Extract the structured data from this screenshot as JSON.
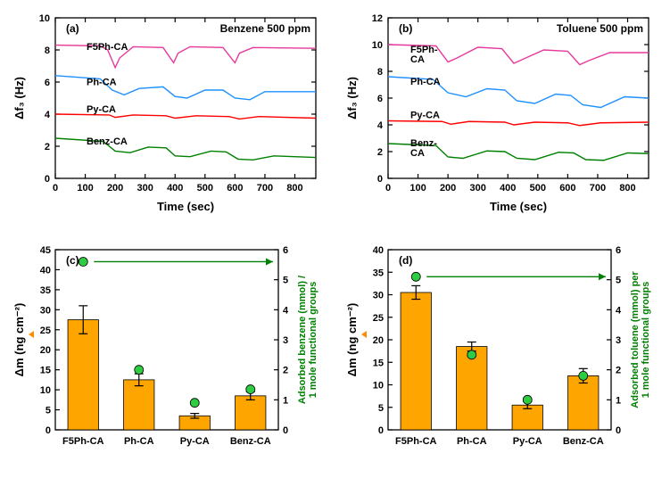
{
  "colors": {
    "f5ph": "#e6399b",
    "ph": "#1e90ff",
    "py": "#ff0000",
    "benz": "#008000",
    "bar": "#ffa500",
    "dot": "#2ecc40",
    "y2": "#008000",
    "y1_arrow": "#ff8c00"
  },
  "panel_a": {
    "label": "(a)",
    "header": "Benzene 500 ppm",
    "x_title": "Time (sec)",
    "y_title": "Δf₃ (Hz)",
    "xlim": [
      0,
      870
    ],
    "xticks": [
      0,
      100,
      200,
      300,
      400,
      500,
      600,
      700,
      800
    ],
    "ylim": [
      0,
      10
    ],
    "yticks": [
      0,
      2,
      4,
      6,
      8,
      10
    ],
    "series": [
      {
        "name": "F5Ph-CA",
        "color": "f5ph",
        "label_x": 35,
        "label_y": 8.0,
        "pts": [
          [
            0,
            8.3
          ],
          [
            150,
            8.25
          ],
          [
            175,
            8.0
          ],
          [
            200,
            6.9
          ],
          [
            215,
            7.5
          ],
          [
            260,
            8.2
          ],
          [
            360,
            8.15
          ],
          [
            395,
            7.2
          ],
          [
            410,
            7.8
          ],
          [
            450,
            8.2
          ],
          [
            560,
            8.15
          ],
          [
            600,
            7.2
          ],
          [
            615,
            7.8
          ],
          [
            660,
            8.15
          ],
          [
            870,
            8.1
          ]
        ]
      },
      {
        "name": "Ph-CA",
        "color": "ph",
        "label_x": 35,
        "label_y": 5.8,
        "pts": [
          [
            0,
            6.4
          ],
          [
            150,
            6.2
          ],
          [
            190,
            5.5
          ],
          [
            230,
            5.2
          ],
          [
            280,
            5.6
          ],
          [
            360,
            5.7
          ],
          [
            400,
            5.1
          ],
          [
            440,
            5.0
          ],
          [
            500,
            5.5
          ],
          [
            560,
            5.5
          ],
          [
            600,
            5.0
          ],
          [
            650,
            4.9
          ],
          [
            700,
            5.4
          ],
          [
            870,
            5.4
          ]
        ]
      },
      {
        "name": "Py-CA",
        "color": "py",
        "label_x": 35,
        "label_y": 4.1,
        "pts": [
          [
            0,
            4.0
          ],
          [
            180,
            3.95
          ],
          [
            200,
            3.8
          ],
          [
            260,
            3.95
          ],
          [
            370,
            3.9
          ],
          [
            400,
            3.75
          ],
          [
            470,
            3.9
          ],
          [
            580,
            3.85
          ],
          [
            615,
            3.7
          ],
          [
            680,
            3.85
          ],
          [
            870,
            3.75
          ]
        ]
      },
      {
        "name": "Benz-CA",
        "color": "benz",
        "label_x": 35,
        "label_y": 2.1,
        "pts": [
          [
            0,
            2.5
          ],
          [
            160,
            2.3
          ],
          [
            200,
            1.7
          ],
          [
            250,
            1.6
          ],
          [
            310,
            1.95
          ],
          [
            370,
            1.9
          ],
          [
            400,
            1.4
          ],
          [
            450,
            1.35
          ],
          [
            520,
            1.7
          ],
          [
            570,
            1.65
          ],
          [
            610,
            1.2
          ],
          [
            660,
            1.15
          ],
          [
            730,
            1.4
          ],
          [
            870,
            1.3
          ]
        ]
      }
    ]
  },
  "panel_b": {
    "label": "(b)",
    "header": "Toluene 500 ppm",
    "x_title": "Time (sec)",
    "y_title": "Δf₃ (Hz)",
    "xlim": [
      0,
      870
    ],
    "xticks": [
      0,
      100,
      200,
      300,
      400,
      500,
      600,
      700,
      800
    ],
    "ylim": [
      0,
      12
    ],
    "yticks": [
      0,
      2,
      4,
      6,
      8,
      10,
      12
    ],
    "series": [
      {
        "name": "F5Ph-\nCA",
        "color": "f5ph",
        "label_x": 25,
        "label_y": 9.4,
        "pts": [
          [
            0,
            10.0
          ],
          [
            160,
            9.9
          ],
          [
            200,
            8.7
          ],
          [
            230,
            9.0
          ],
          [
            300,
            9.8
          ],
          [
            380,
            9.7
          ],
          [
            420,
            8.6
          ],
          [
            450,
            8.9
          ],
          [
            520,
            9.6
          ],
          [
            600,
            9.5
          ],
          [
            640,
            8.5
          ],
          [
            670,
            8.8
          ],
          [
            740,
            9.4
          ],
          [
            870,
            9.4
          ]
        ]
      },
      {
        "name": "Ph-CA",
        "color": "ph",
        "label_x": 25,
        "label_y": 7.0,
        "pts": [
          [
            0,
            7.6
          ],
          [
            150,
            7.4
          ],
          [
            200,
            6.4
          ],
          [
            260,
            6.1
          ],
          [
            330,
            6.7
          ],
          [
            390,
            6.6
          ],
          [
            430,
            5.8
          ],
          [
            490,
            5.6
          ],
          [
            560,
            6.3
          ],
          [
            610,
            6.2
          ],
          [
            650,
            5.5
          ],
          [
            710,
            5.3
          ],
          [
            790,
            6.1
          ],
          [
            870,
            6.0
          ]
        ]
      },
      {
        "name": "Py-CA",
        "color": "py",
        "label_x": 25,
        "label_y": 4.5,
        "pts": [
          [
            0,
            4.3
          ],
          [
            180,
            4.25
          ],
          [
            210,
            4.05
          ],
          [
            270,
            4.25
          ],
          [
            390,
            4.2
          ],
          [
            420,
            4.0
          ],
          [
            490,
            4.2
          ],
          [
            600,
            4.15
          ],
          [
            640,
            3.95
          ],
          [
            710,
            4.15
          ],
          [
            870,
            4.2
          ]
        ]
      },
      {
        "name": "Benz-\nCA",
        "color": "benz",
        "label_x": 25,
        "label_y": 2.4,
        "pts": [
          [
            0,
            2.6
          ],
          [
            160,
            2.45
          ],
          [
            200,
            1.6
          ],
          [
            250,
            1.5
          ],
          [
            330,
            2.05
          ],
          [
            390,
            2.0
          ],
          [
            430,
            1.5
          ],
          [
            490,
            1.4
          ],
          [
            570,
            1.95
          ],
          [
            620,
            1.9
          ],
          [
            660,
            1.4
          ],
          [
            720,
            1.35
          ],
          [
            800,
            1.9
          ],
          [
            870,
            1.85
          ]
        ]
      }
    ]
  },
  "panel_c": {
    "label": "(c)",
    "x_title": "",
    "y_title": "Δm (ng cm⁻²)",
    "y2_title1": "Adsorbed benzene (mmol) /",
    "y2_title2": "1 mole functional groups",
    "cats": [
      "F5Ph-CA",
      "Ph-CA",
      "Py-CA",
      "Benz-CA"
    ],
    "ylim": [
      0,
      45
    ],
    "yticks": [
      0,
      5,
      10,
      15,
      20,
      25,
      30,
      35,
      40,
      45
    ],
    "y2lim": [
      0,
      6
    ],
    "y2ticks": [
      0,
      1,
      2,
      3,
      4,
      5,
      6
    ],
    "bars": [
      {
        "v": 27.5,
        "err": 3.5
      },
      {
        "v": 12.5,
        "err": 1.5
      },
      {
        "v": 3.5,
        "err": 0.6
      },
      {
        "v": 8.5,
        "err": 1.0
      }
    ],
    "dots": [
      5.6,
      2.0,
      0.9,
      1.35
    ]
  },
  "panel_d": {
    "label": "(d)",
    "x_title": "",
    "y_title": "Δm (ng cm⁻²)",
    "y2_title1": "Adsorbed toluene (mmol) per",
    "y2_title2": "1 mole functional groups",
    "cats": [
      "F5Ph-CA",
      "Ph-CA",
      "Py-CA",
      "Benz-CA"
    ],
    "ylim": [
      0,
      40
    ],
    "yticks": [
      0,
      5,
      10,
      15,
      20,
      25,
      30,
      35,
      40
    ],
    "y2lim": [
      0,
      6
    ],
    "y2ticks": [
      0,
      1,
      2,
      3,
      4,
      5,
      6
    ],
    "bars": [
      {
        "v": 30.5,
        "err": 1.5
      },
      {
        "v": 18.5,
        "err": 1.0
      },
      {
        "v": 5.5,
        "err": 0.8
      },
      {
        "v": 12.0,
        "err": 1.6
      }
    ],
    "dots": [
      5.1,
      2.5,
      1.0,
      1.8
    ]
  }
}
